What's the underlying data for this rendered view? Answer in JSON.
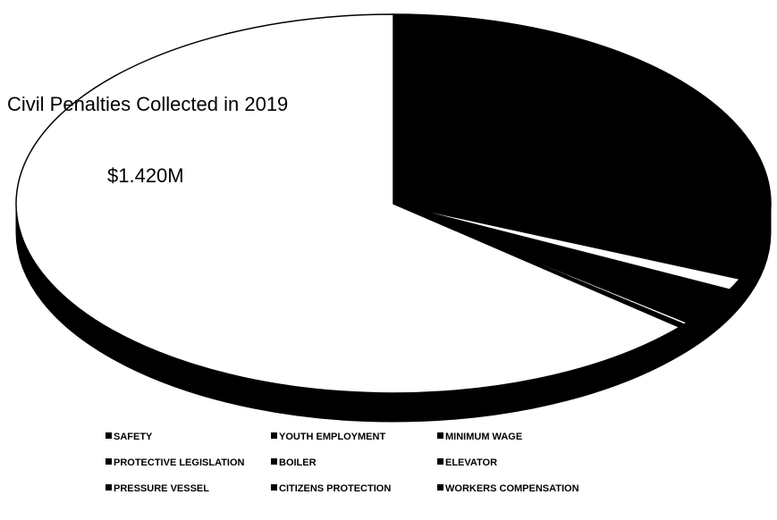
{
  "chart_data": {
    "type": "pie",
    "title": "Civil Penalties Collected in 2019",
    "annotation": "$1.420M",
    "categories": [
      "SAFETY",
      "YOUTH EMPLOYMENT",
      "MINIMUM WAGE",
      "PROTECTIVE LEGISLATION",
      "BOILER",
      "ELEVATOR",
      "PRESSURE VESSEL",
      "CITIZENS PROTECTION",
      "WORKERS COMPENSATION"
    ],
    "values": [
      31,
      0.5,
      1,
      3,
      0.3,
      0.2,
      0.2,
      0.1,
      63.7
    ],
    "colors": [
      "#000000",
      "#000000",
      "#ffffff",
      "#000000",
      "#000000",
      "#ffffff",
      "#000000",
      "#000000",
      "#ffffff"
    ],
    "legend_color": "#000000"
  }
}
